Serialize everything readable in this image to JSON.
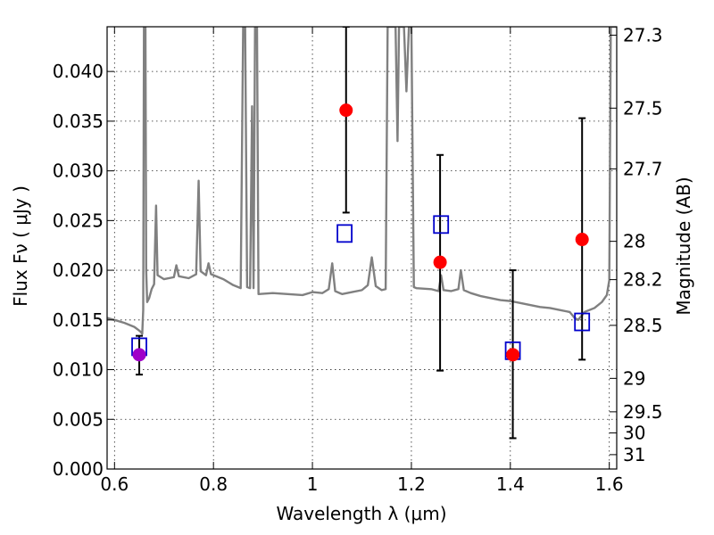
{
  "chart_data": {
    "type": "scatter",
    "title": "",
    "xlabel": "Wavelength  λ (μm)",
    "ylabel": "Flux  Fν  ( μJy )",
    "y2label": "Magnitude (AB)",
    "xlim": [
      0.585,
      1.615
    ],
    "ylim": [
      0.0,
      0.0445
    ],
    "x_ticks": [
      0.6,
      0.8,
      1.0,
      1.2,
      1.4,
      1.6
    ],
    "x_tick_labels": [
      "0.6",
      "0.8",
      "1",
      "1.2",
      "1.4",
      "1.6"
    ],
    "y_ticks": [
      0.0,
      0.005,
      0.01,
      0.015,
      0.02,
      0.025,
      0.03,
      0.035,
      0.04
    ],
    "y_tick_labels": [
      "0.000",
      "0.005",
      "0.010",
      "0.015",
      "0.020",
      "0.025",
      "0.030",
      "0.035",
      "0.040"
    ],
    "mag_ticks": [
      27.3,
      27.5,
      27.7,
      28,
      28.2,
      28.5,
      29,
      29.5,
      30,
      31
    ],
    "mag_tick_labels": [
      "27.3",
      "27.5",
      "27.7",
      "28",
      "28.2",
      "28.5",
      "29",
      "29.5",
      "30",
      "31"
    ],
    "grid": true,
    "colors": {
      "model": "#808080",
      "observed": "#ff0000",
      "observed_special": "#a000c8",
      "model_phot": "#0000cc",
      "errorbar": "#000000"
    },
    "observed_points": [
      {
        "x": 0.65,
        "y": 0.0115,
        "yerr_low": 0.0095,
        "yerr_high": 0.0134,
        "special": true
      },
      {
        "x": 1.068,
        "y": 0.0361,
        "yerr_low": 0.0258,
        "yerr_high": 0.0445,
        "special": false
      },
      {
        "x": 1.258,
        "y": 0.0208,
        "yerr_low": 0.0099,
        "yerr_high": 0.0316,
        "special": false
      },
      {
        "x": 1.405,
        "y": 0.0115,
        "yerr_low": 0.0031,
        "yerr_high": 0.02,
        "special": false
      },
      {
        "x": 1.545,
        "y": 0.0231,
        "yerr_low": 0.011,
        "yerr_high": 0.0353,
        "special": false
      }
    ],
    "model_photometry": [
      {
        "x": 0.65,
        "y": 0.0123
      },
      {
        "x": 1.065,
        "y": 0.0237
      },
      {
        "x": 1.26,
        "y": 0.0246
      },
      {
        "x": 1.405,
        "y": 0.0119
      },
      {
        "x": 1.545,
        "y": 0.0148
      }
    ],
    "spectrum": [
      [
        0.585,
        0.0152
      ],
      [
        0.6,
        0.015
      ],
      [
        0.62,
        0.0147
      ],
      [
        0.64,
        0.0143
      ],
      [
        0.648,
        0.014
      ],
      [
        0.653,
        0.0138
      ],
      [
        0.656,
        0.0136
      ],
      [
        0.658,
        0.016
      ],
      [
        0.6595,
        0.0445
      ],
      [
        0.661,
        0.0445
      ],
      [
        0.6625,
        0.0445
      ],
      [
        0.664,
        0.02
      ],
      [
        0.666,
        0.0168
      ],
      [
        0.67,
        0.0172
      ],
      [
        0.675,
        0.0181
      ],
      [
        0.68,
        0.0186
      ],
      [
        0.684,
        0.0265
      ],
      [
        0.687,
        0.0195
      ],
      [
        0.7,
        0.0191
      ],
      [
        0.72,
        0.0193
      ],
      [
        0.725,
        0.0205
      ],
      [
        0.73,
        0.0194
      ],
      [
        0.75,
        0.0192
      ],
      [
        0.765,
        0.0196
      ],
      [
        0.77,
        0.029
      ],
      [
        0.774,
        0.0199
      ],
      [
        0.785,
        0.0195
      ],
      [
        0.79,
        0.0207
      ],
      [
        0.795,
        0.0196
      ],
      [
        0.82,
        0.0191
      ],
      [
        0.84,
        0.0185
      ],
      [
        0.855,
        0.0182
      ],
      [
        0.86,
        0.0445
      ],
      [
        0.864,
        0.0445
      ],
      [
        0.868,
        0.0183
      ],
      [
        0.874,
        0.0182
      ],
      [
        0.878,
        0.0365
      ],
      [
        0.881,
        0.0182
      ],
      [
        0.884,
        0.0445
      ],
      [
        0.888,
        0.0445
      ],
      [
        0.891,
        0.0176
      ],
      [
        0.92,
        0.0177
      ],
      [
        0.95,
        0.0176
      ],
      [
        0.98,
        0.0175
      ],
      [
        1.0,
        0.0178
      ],
      [
        1.02,
        0.0177
      ],
      [
        1.033,
        0.0181
      ],
      [
        1.04,
        0.0207
      ],
      [
        1.046,
        0.0179
      ],
      [
        1.06,
        0.0176
      ],
      [
        1.08,
        0.0178
      ],
      [
        1.1,
        0.018
      ],
      [
        1.112,
        0.0185
      ],
      [
        1.12,
        0.0213
      ],
      [
        1.128,
        0.0184
      ],
      [
        1.14,
        0.018
      ],
      [
        1.148,
        0.0181
      ],
      [
        1.152,
        0.0445
      ],
      [
        1.158,
        0.0445
      ],
      [
        1.163,
        0.0445
      ],
      [
        1.168,
        0.0445
      ],
      [
        1.172,
        0.033
      ],
      [
        1.175,
        0.0445
      ],
      [
        1.18,
        0.0445
      ],
      [
        1.185,
        0.0445
      ],
      [
        1.19,
        0.038
      ],
      [
        1.195,
        0.0445
      ],
      [
        1.2,
        0.0445
      ],
      [
        1.205,
        0.0183
      ],
      [
        1.21,
        0.0182
      ],
      [
        1.24,
        0.0181
      ],
      [
        1.255,
        0.0179
      ],
      [
        1.26,
        0.0195
      ],
      [
        1.265,
        0.018
      ],
      [
        1.28,
        0.0179
      ],
      [
        1.295,
        0.0181
      ],
      [
        1.3,
        0.02
      ],
      [
        1.306,
        0.018
      ],
      [
        1.32,
        0.0177
      ],
      [
        1.34,
        0.0174
      ],
      [
        1.36,
        0.0172
      ],
      [
        1.38,
        0.017
      ],
      [
        1.4,
        0.0169
      ],
      [
        1.42,
        0.0167
      ],
      [
        1.44,
        0.0165
      ],
      [
        1.46,
        0.0163
      ],
      [
        1.48,
        0.0162
      ],
      [
        1.5,
        0.016
      ],
      [
        1.52,
        0.0158
      ],
      [
        1.53,
        0.0152
      ],
      [
        1.537,
        0.015
      ],
      [
        1.55,
        0.0158
      ],
      [
        1.57,
        0.0162
      ],
      [
        1.585,
        0.0168
      ],
      [
        1.595,
        0.0175
      ],
      [
        1.6,
        0.019
      ],
      [
        1.603,
        0.0445
      ],
      [
        1.615,
        0.0445
      ]
    ]
  }
}
